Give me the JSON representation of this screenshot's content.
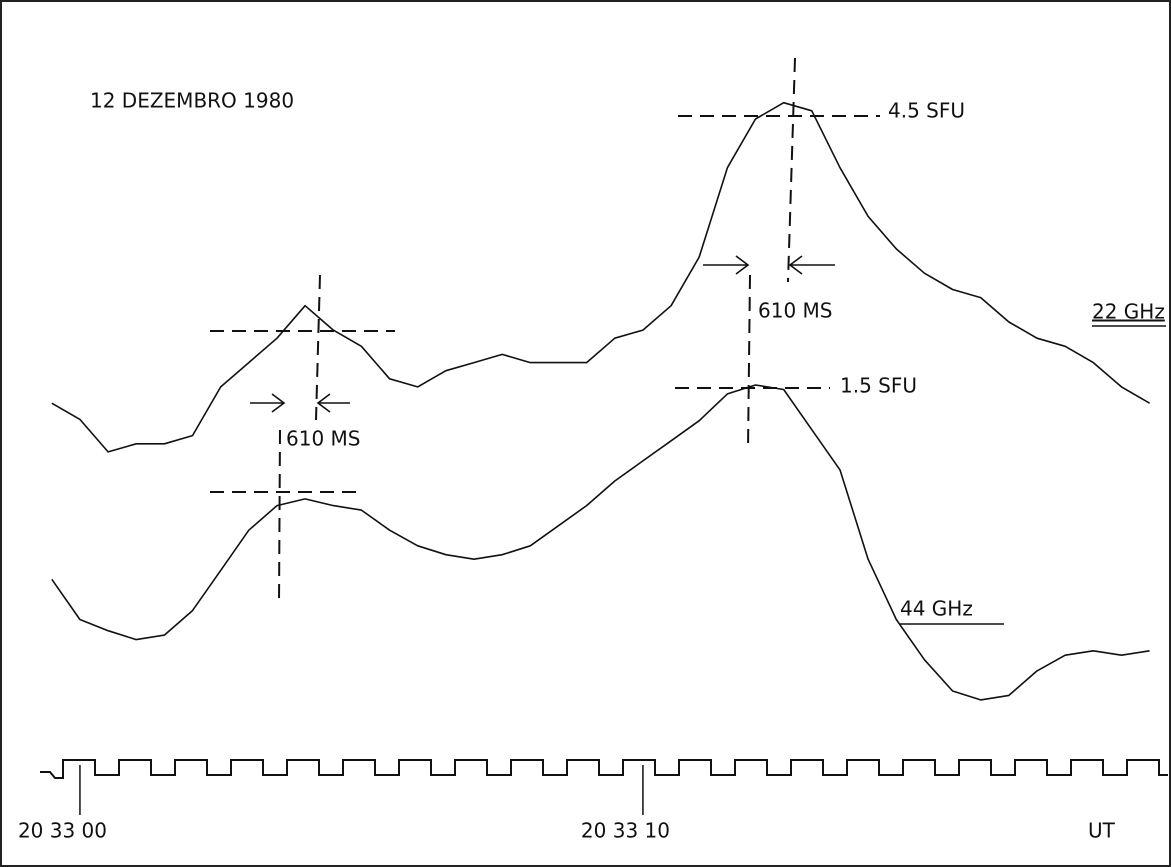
{
  "chart_data": {
    "type": "line",
    "title": "12 DEZEMBRO 1980",
    "x": [
      -0.5,
      0,
      0.5,
      1,
      1.5,
      2,
      2.5,
      3,
      3.5,
      4,
      4.5,
      5,
      5.5,
      6,
      6.5,
      7,
      7.5,
      8,
      8.5,
      9,
      9.5,
      10,
      10.5,
      11,
      11.5,
      12,
      12.5,
      13,
      13.5,
      14,
      14.5,
      15,
      15.5,
      16,
      16.5,
      17,
      17.5,
      18,
      18.5,
      19
    ],
    "series": [
      {
        "name": "22 GHz",
        "color": "#111111",
        "values": [
          0.7,
          0.5,
          0.1,
          0.2,
          0.2,
          0.3,
          0.9,
          1.2,
          1.5,
          1.9,
          1.6,
          1.4,
          1.0,
          0.9,
          1.1,
          1.2,
          1.3,
          1.2,
          1.2,
          1.2,
          1.5,
          1.6,
          1.9,
          2.5,
          3.6,
          4.2,
          4.4,
          4.3,
          3.6,
          3.0,
          2.6,
          2.3,
          2.1,
          2.0,
          1.7,
          1.5,
          1.4,
          1.2,
          0.9,
          0.7
        ]
      },
      {
        "name": "44 GHz",
        "color": "#111111",
        "axis": "y2",
        "values": [
          0.63,
          0.45,
          0.4,
          0.36,
          0.38,
          0.49,
          0.67,
          0.85,
          0.96,
          0.99,
          0.96,
          0.94,
          0.85,
          0.78,
          0.74,
          0.72,
          0.74,
          0.78,
          0.87,
          0.96,
          1.07,
          1.16,
          1.25,
          1.34,
          1.46,
          1.5,
          1.48,
          1.3,
          1.12,
          0.72,
          0.45,
          0.27,
          0.13,
          0.09,
          0.11,
          0.22,
          0.29,
          0.31,
          0.29,
          0.31
        ]
      }
    ],
    "xlim": [
      -1.42,
      19.38
    ],
    "xticks": [
      {
        "value": 0,
        "label": "20 33 00"
      },
      {
        "value": 10,
        "label": "20 33 10"
      }
    ],
    "x_label": "UT",
    "ylim": [
      0,
      5
    ],
    "y2lim": [
      0,
      3
    ],
    "annotations": [
      "4.5 SFU",
      "610 MS",
      "610 MS",
      "1.5 SFU"
    ]
  }
}
